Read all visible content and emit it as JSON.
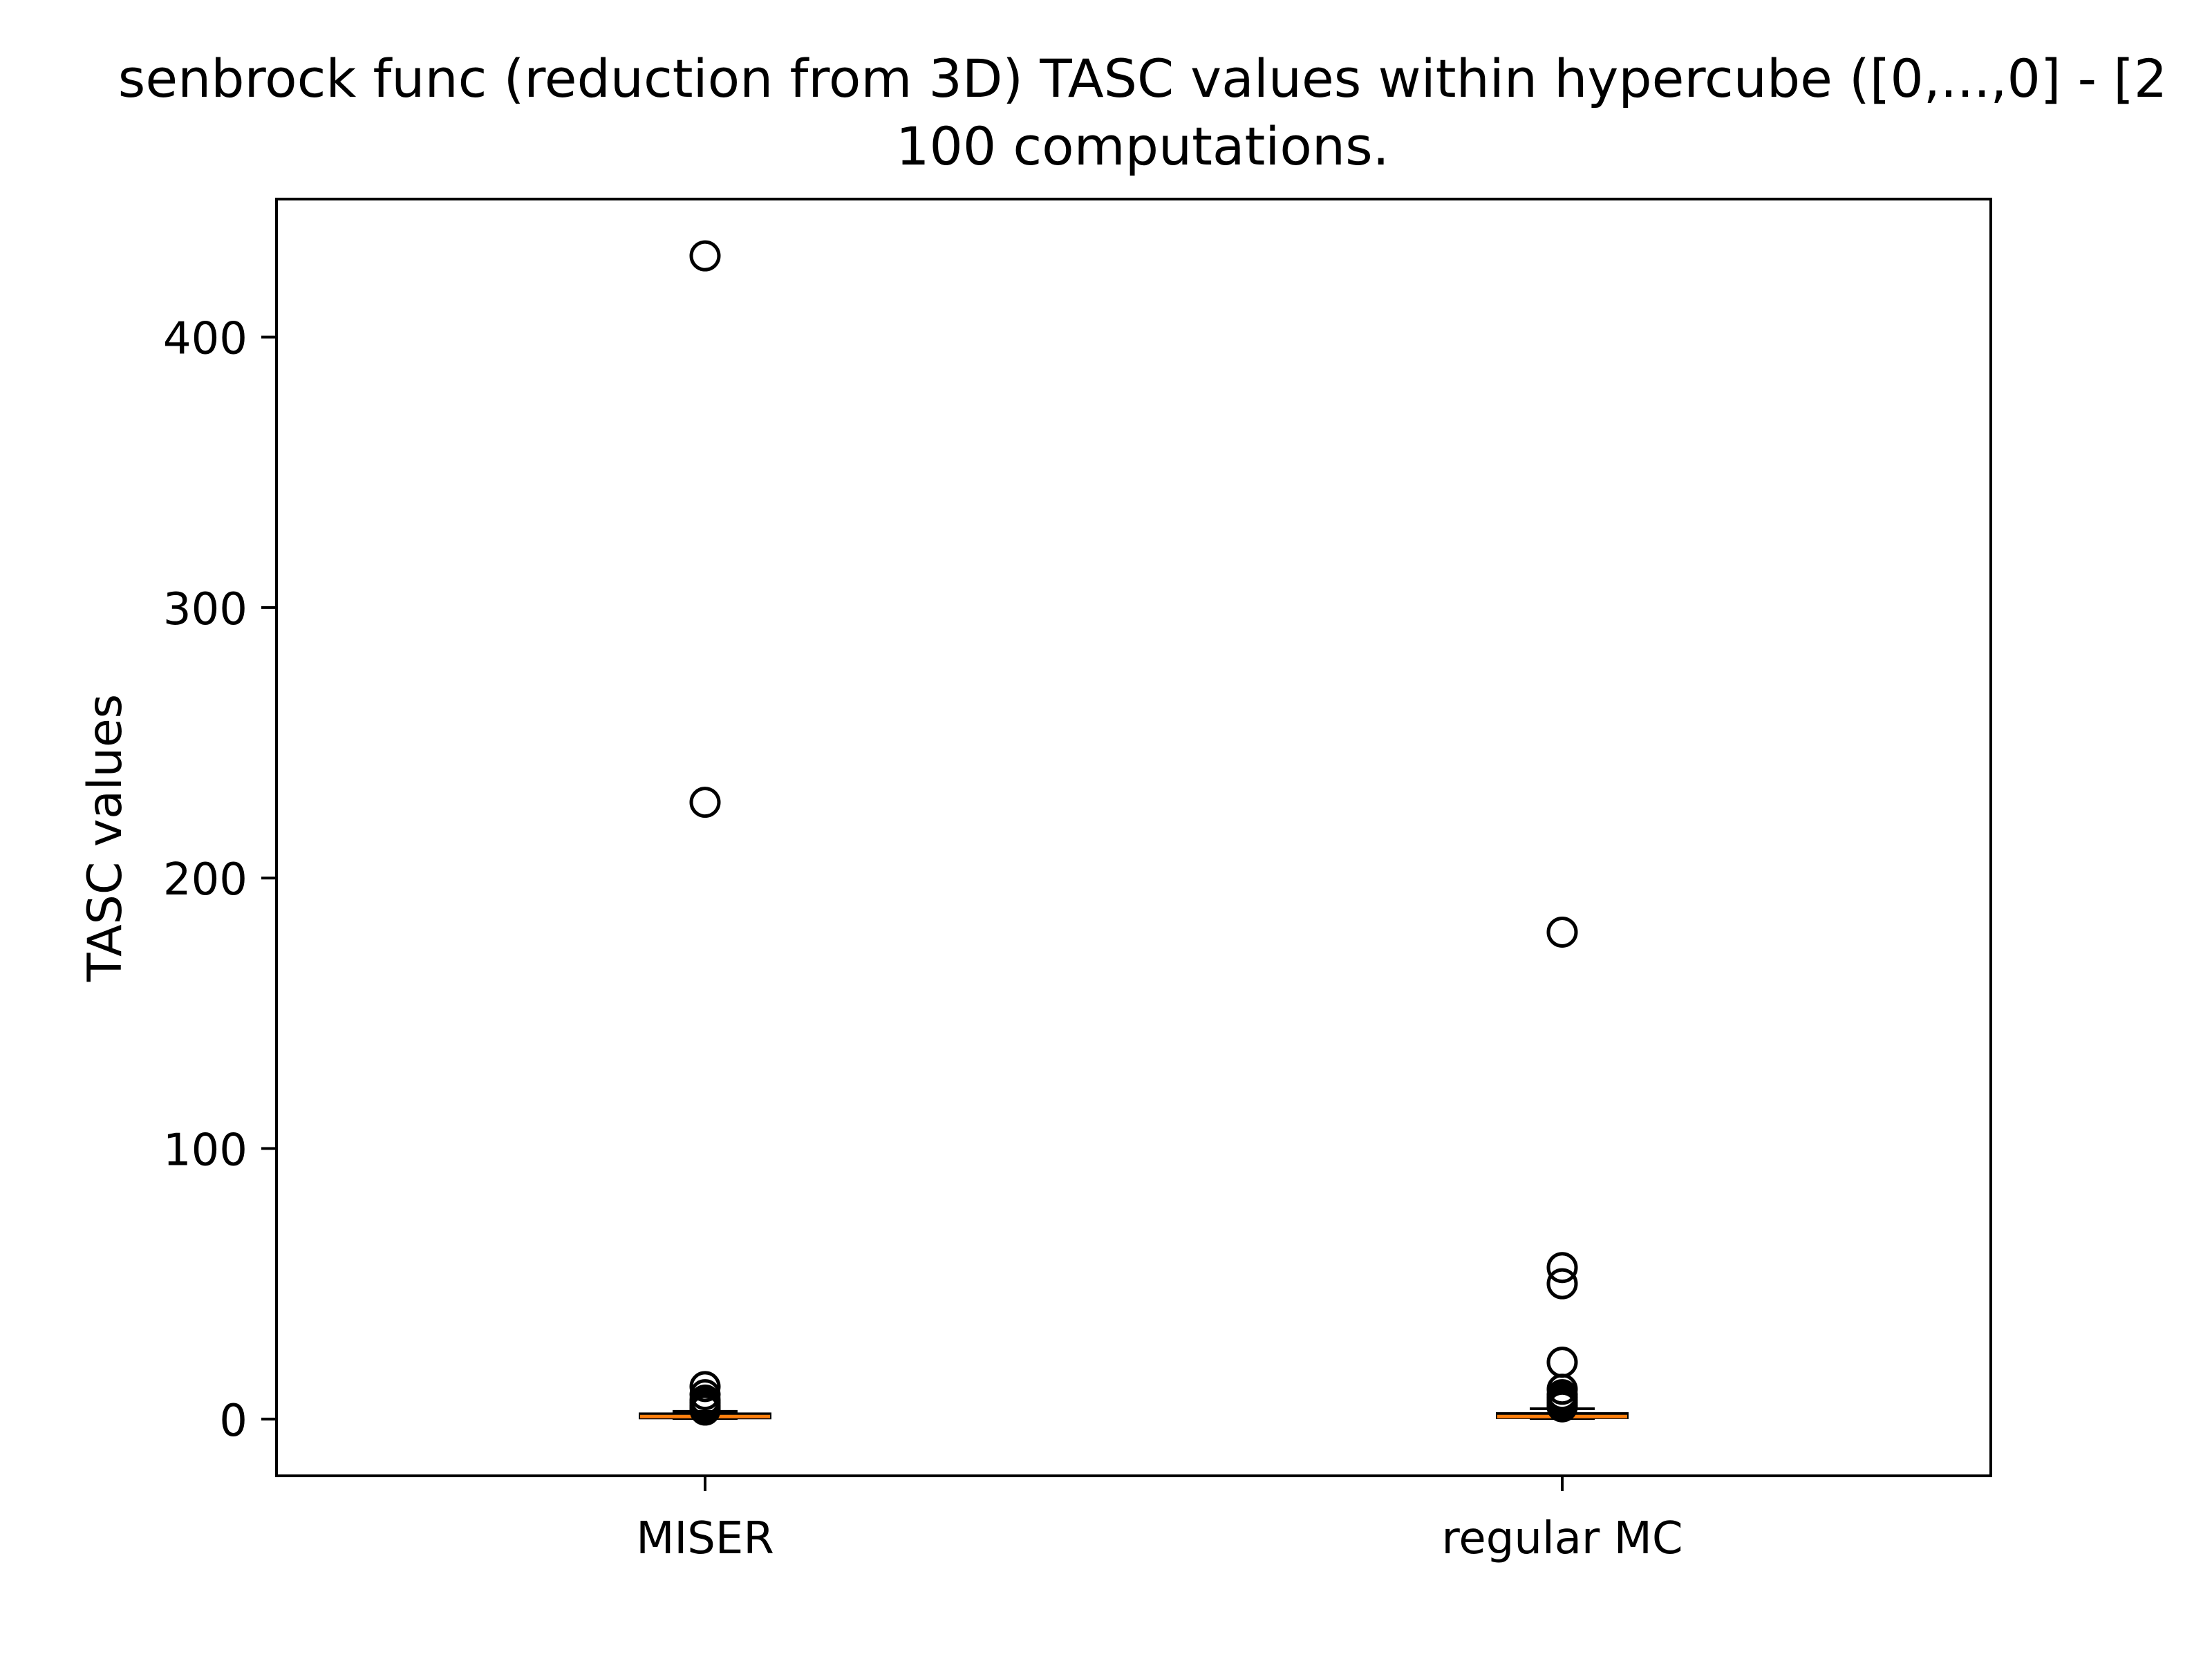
{
  "chart_data": {
    "type": "boxplot",
    "title_line1": "senbrock func (reduction from 3D) TASC values within hypercube ([0,...,0] - [2",
    "title_line2": "100 computations.",
    "xlabel": "",
    "ylabel": "TASC values",
    "ylim": [
      -21,
      451
    ],
    "yticks": [
      0,
      100,
      200,
      300,
      400
    ],
    "ytick_labels": [
      "0",
      "100",
      "200",
      "300",
      "400"
    ],
    "grid": false,
    "categories": [
      "MISER",
      "regular MC"
    ],
    "boxes": [
      {
        "category": "MISER",
        "whisker_low": 0.2,
        "q1": 0.4,
        "median": 0.9,
        "q3": 1.9,
        "whisker_high": 2.8,
        "outliers": [
          430,
          228,
          12,
          9,
          7,
          6,
          5,
          4,
          3.8,
          3.5,
          3.3
        ]
      },
      {
        "category": "regular MC",
        "whisker_low": 0.2,
        "q1": 0.5,
        "median": 0.9,
        "q3": 2.0,
        "whisker_high": 3.8,
        "outliers": [
          180,
          56,
          50,
          21,
          11,
          9,
          8,
          7,
          6,
          5,
          4.5
        ]
      }
    ],
    "colors": {
      "box_fill": "#ffffff",
      "box_edge": "#000000",
      "median": "#ff7f0e",
      "outlier_edge": "#000000"
    }
  }
}
